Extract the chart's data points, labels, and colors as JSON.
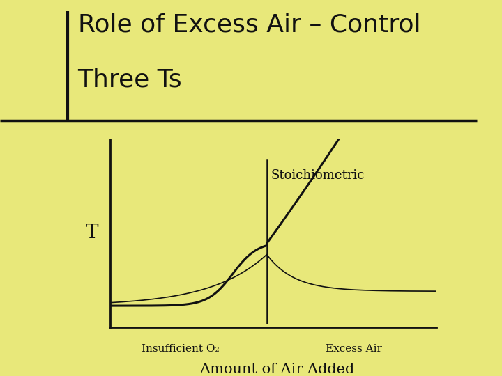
{
  "title_line1": "Role of Excess Air – Control",
  "title_line2": "Three Ts",
  "bg_color": "#e8e87a",
  "curve_color": "#111111",
  "axis_color": "#111111",
  "ylabel": "T",
  "xlabel": "Amount of Air Added",
  "label_insufficient": "Insufficient O₂",
  "label_excess": "Excess Air",
  "label_stoich": "Stoichiometric",
  "title_fontsize": 26,
  "stoich_x": 0.0,
  "xlim": [
    -2.3,
    2.5
  ],
  "ylim": [
    0.0,
    2.2
  ]
}
